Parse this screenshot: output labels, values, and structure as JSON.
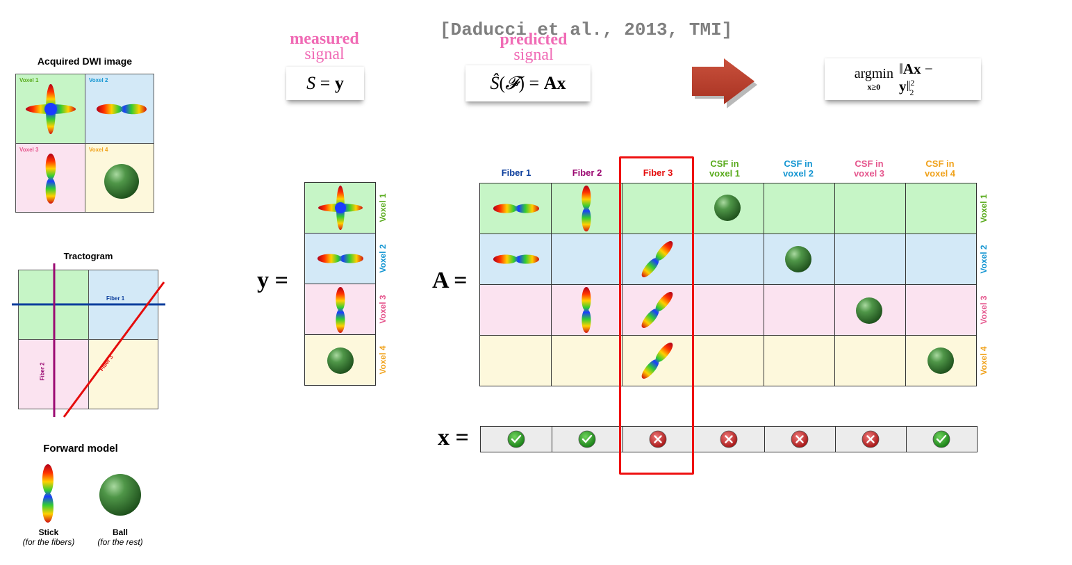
{
  "citation": "[Daducci et al., 2013, TMI]",
  "measured": {
    "word1": "measured",
    "word2": "signal",
    "equation": "S = y"
  },
  "predicted": {
    "word1": "predicted",
    "word2": "signal",
    "equation": "Ŝ(𝓕) = Ax"
  },
  "objective": {
    "op": "argmin",
    "sub": "x≥0",
    "expr": "‖Ax − y‖²₂"
  },
  "dwi": {
    "title": "Acquired DWI image",
    "voxels": [
      "Voxel 1",
      "Voxel 2",
      "Voxel 3",
      "Voxel 4"
    ]
  },
  "tractogram": {
    "title": "Tractogram",
    "fibers": [
      "Fiber 1",
      "Fiber 2",
      "Fiber 3"
    ]
  },
  "forward_model": {
    "title": "Forward model",
    "stick": {
      "name": "Stick",
      "desc": "(for the fibers)"
    },
    "ball": {
      "name": "Ball",
      "desc": "(for the rest)"
    }
  },
  "y_vector": {
    "symbol": "y =",
    "rows": [
      "Voxel 1",
      "Voxel 2",
      "Voxel 3",
      "Voxel 4"
    ]
  },
  "A_matrix": {
    "symbol": "A =",
    "columns": [
      {
        "l1": "Fiber 1",
        "l2": ""
      },
      {
        "l1": "Fiber 2",
        "l2": ""
      },
      {
        "l1": "Fiber 3",
        "l2": ""
      },
      {
        "l1": "CSF in",
        "l2": "voxel 1"
      },
      {
        "l1": "CSF in",
        "l2": "voxel 2"
      },
      {
        "l1": "CSF in",
        "l2": "voxel 3"
      },
      {
        "l1": "CSF in",
        "l2": "voxel 4"
      }
    ],
    "rows": [
      "Voxel 1",
      "Voxel 2",
      "Voxel 3",
      "Voxel 4"
    ]
  },
  "x_vector": {
    "symbol": "x =",
    "values": [
      "check",
      "check",
      "cross",
      "cross",
      "cross",
      "cross",
      "check"
    ]
  },
  "colors": {
    "voxel1": "#5aab1e",
    "voxel2": "#1596d2",
    "voxel3": "#e5568d",
    "voxel4": "#f0a21c",
    "fiber1": "#0b3d9c",
    "fiber2": "#9b0a72",
    "fiber3": "#e50c0c",
    "bg1": "#c6f5c6",
    "bg2": "#d3e9f7",
    "bg3": "#fbe3f0",
    "bg4": "#fdf8dc"
  }
}
